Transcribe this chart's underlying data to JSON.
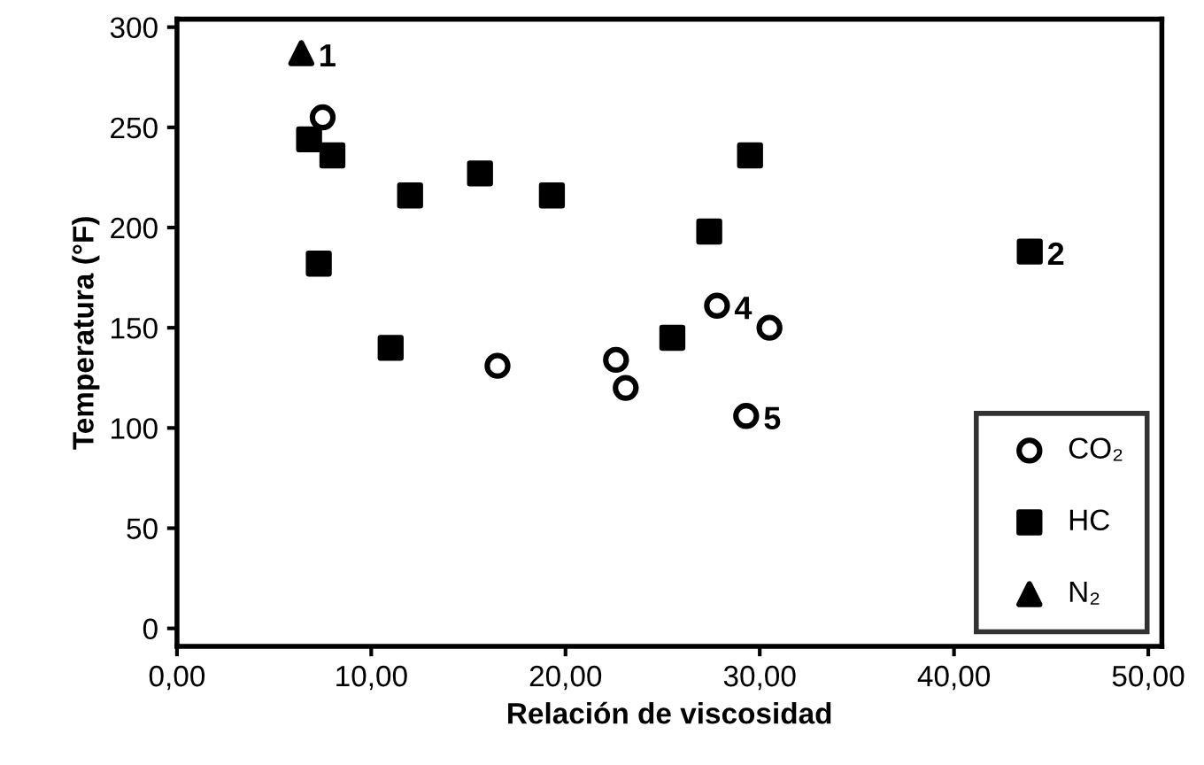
{
  "chart_data": {
    "type": "scatter",
    "xlabel": "Relación de viscosidad",
    "ylabel": "Temperatura (°F)",
    "xlim": [
      0,
      50.7
    ],
    "ylim": [
      -9,
      304
    ],
    "xticks": [
      {
        "value": 0,
        "label": "0,00"
      },
      {
        "value": 10,
        "label": "10,00"
      },
      {
        "value": 20,
        "label": "20,00"
      },
      {
        "value": 30,
        "label": "30,00"
      },
      {
        "value": 40,
        "label": "40,00"
      },
      {
        "value": 50,
        "label": "50,00"
      }
    ],
    "yticks": [
      0,
      50,
      100,
      150,
      200,
      250,
      300
    ],
    "grid": false,
    "legend": "bottom right",
    "series": [
      {
        "name": "CO₂",
        "color": "#000000",
        "marker": "circle",
        "x": [
          7.5,
          16.5,
          23.1,
          22.6,
          27.8,
          30.5,
          29.3
        ],
        "values": [
          255,
          131,
          120,
          134,
          161,
          150,
          106
        ]
      },
      {
        "name": "HC",
        "color": "#000000",
        "marker": "square",
        "x": [
          6.8,
          8.0,
          7.3,
          11.0,
          12.0,
          15.6,
          19.3,
          25.5,
          27.4,
          29.5,
          43.9
        ],
        "values": [
          244,
          236,
          182,
          140,
          216,
          227,
          216,
          145,
          198,
          236,
          188
        ]
      },
      {
        "name": "N₂",
        "color": "#000000",
        "marker": "triangle",
        "x": [
          6.4
        ],
        "values": [
          287
        ]
      }
    ],
    "annotations": [
      {
        "text": "1",
        "x": 6.4,
        "y": 287
      },
      {
        "text": "2",
        "x": 43.9,
        "y": 188
      },
      {
        "text": "4",
        "x": 27.8,
        "y": 161
      },
      {
        "text": "5",
        "x": 29.3,
        "y": 106
      }
    ]
  }
}
